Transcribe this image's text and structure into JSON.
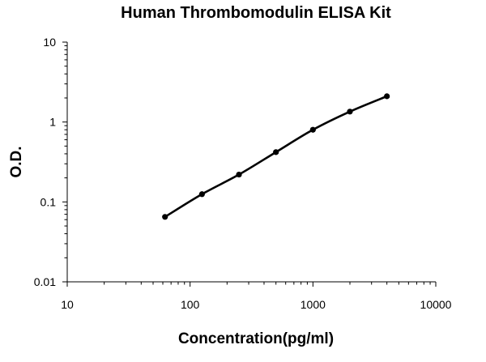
{
  "chart_data": {
    "type": "line",
    "title": "Human Thrombomodulin ELISA Kit",
    "xlabel": "Concentration(pg/ml)",
    "ylabel": "O.D.",
    "x_scale": "log",
    "y_scale": "log",
    "xlim": [
      10,
      10000
    ],
    "ylim": [
      0.01,
      10
    ],
    "x_ticks": [
      "10",
      "100",
      "1000",
      "10000"
    ],
    "y_ticks": [
      "0.01",
      "0.1",
      "1",
      "10"
    ],
    "grid": false,
    "legend": "none",
    "series": [
      {
        "color": "#000000",
        "x": [
          62.5,
          125,
          250,
          500,
          1000,
          2000,
          4000
        ],
        "y": [
          0.065,
          0.125,
          0.22,
          0.42,
          0.8,
          1.35,
          2.1
        ]
      }
    ]
  }
}
